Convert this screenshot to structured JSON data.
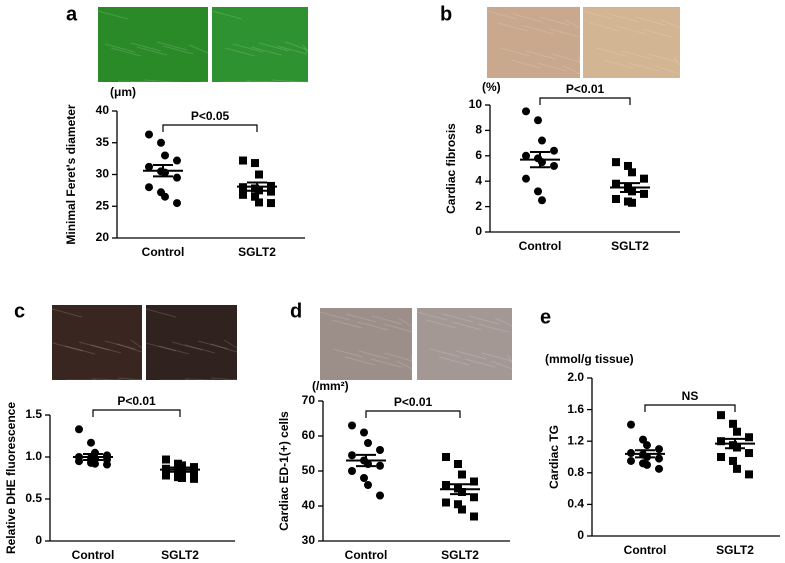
{
  "chart_data": [
    {
      "type": "dot",
      "panel": "a",
      "y_label": "Minimal Feret's diameter",
      "unit_label": "(μm)",
      "annotation": "P<0.05",
      "categories": [
        "Control",
        "SGLT2"
      ],
      "markers": [
        "circle",
        "square"
      ],
      "image_colors": [
        "#2a8a28",
        "#2f9230"
      ],
      "points": [
        [
          36.3,
          35,
          33,
          32.2,
          31.2,
          30.5,
          30.3,
          29.5,
          28,
          27.2,
          26.5,
          25.5
        ],
        [
          32.2,
          31.8,
          30,
          28.2,
          28,
          27.8,
          27.5,
          27.3,
          26.8,
          26.5,
          25.6,
          25.5
        ]
      ],
      "mean": [
        30.6,
        28.1
      ],
      "sem": [
        0.9,
        0.65
      ],
      "ylim": [
        20,
        40
      ],
      "yticks": [
        20,
        25,
        30,
        35,
        40
      ]
    },
    {
      "type": "dot",
      "panel": "b",
      "y_label": "Cardiac fibrosis",
      "unit_label": "(%)",
      "annotation": "P<0.01",
      "categories": [
        "Control",
        "SGLT2"
      ],
      "markers": [
        "circle",
        "square"
      ],
      "image_colors": [
        "#c9a88e",
        "#d2b592"
      ],
      "points": [
        [
          9.5,
          8.8,
          7.2,
          6.4,
          6.0,
          5.8,
          5.5,
          5.2,
          4.2,
          3.2,
          2.5
        ],
        [
          5.5,
          5.2,
          4.7,
          4.2,
          3.8,
          3.5,
          3.2,
          3.0,
          2.6,
          2.4,
          2.3
        ]
      ],
      "mean": [
        5.7,
        3.5
      ],
      "sem": [
        0.6,
        0.35
      ],
      "ylim": [
        0,
        10
      ],
      "yticks": [
        0,
        2,
        4,
        6,
        8,
        10
      ]
    },
    {
      "type": "dot",
      "panel": "c",
      "y_label": "Relative DHE fluorescence",
      "annotation": "P<0.01",
      "categories": [
        "Control",
        "SGLT2"
      ],
      "markers": [
        "circle",
        "square"
      ],
      "image_colors": [
        "#3a2620",
        "#30221e"
      ],
      "points": [
        [
          1.33,
          1.17,
          1.05,
          1.02,
          1.0,
          0.99,
          0.98,
          0.97,
          0.95,
          0.93,
          0.92,
          0.91
        ],
        [
          0.97,
          0.92,
          0.9,
          0.88,
          0.86,
          0.85,
          0.83,
          0.8,
          0.78,
          0.76,
          0.75,
          0.74
        ]
      ],
      "mean": [
        1.0,
        0.85
      ],
      "sem": [
        0.035,
        0.025
      ],
      "ylim": [
        0,
        1.5
      ],
      "yticks": [
        0,
        0.5,
        {
          "value": 1,
          "label": "1.0"
        },
        1.5
      ]
    },
    {
      "type": "dot",
      "panel": "d",
      "y_label": "Cardiac ED-1(+) cells",
      "unit_label": "(/mm²)",
      "annotation": "P<0.01",
      "categories": [
        "Control",
        "SGLT2"
      ],
      "markers": [
        "circle",
        "square"
      ],
      "image_colors": [
        "#9c8f8a",
        "#a39894"
      ],
      "points": [
        [
          63,
          61,
          58,
          56,
          54.5,
          53,
          52,
          51.5,
          50,
          48,
          46,
          43
        ],
        [
          54,
          52,
          49,
          47,
          46,
          45,
          44,
          42.5,
          41,
          40.5,
          39,
          37
        ]
      ],
      "mean": [
        53,
        44.8
      ],
      "sem": [
        1.6,
        1.4
      ],
      "ylim": [
        30,
        70
      ],
      "yticks": [
        30,
        40,
        50,
        60,
        70
      ]
    },
    {
      "type": "dot",
      "panel": "e",
      "y_label": "Cardiac TG",
      "unit_label": "(mmol/g tissue)",
      "annotation": "NS",
      "categories": [
        "Control",
        "SGLT2"
      ],
      "markers": [
        "circle",
        "square"
      ],
      "points": [
        [
          1.41,
          1.22,
          1.15,
          1.1,
          1.05,
          1.03,
          1.0,
          0.98,
          0.95,
          0.92,
          0.9,
          0.85
        ],
        [
          1.53,
          1.42,
          1.32,
          1.25,
          1.2,
          1.15,
          1.12,
          1.05,
          1.0,
          0.95,
          0.85,
          0.78
        ]
      ],
      "mean": [
        1.04,
        1.17
      ],
      "sem": [
        0.045,
        0.06
      ],
      "ylim": [
        0,
        2
      ],
      "yticks": [
        0,
        0.4,
        0.8,
        1.2,
        1.6,
        {
          "value": 2,
          "label": "2.0"
        }
      ]
    }
  ]
}
